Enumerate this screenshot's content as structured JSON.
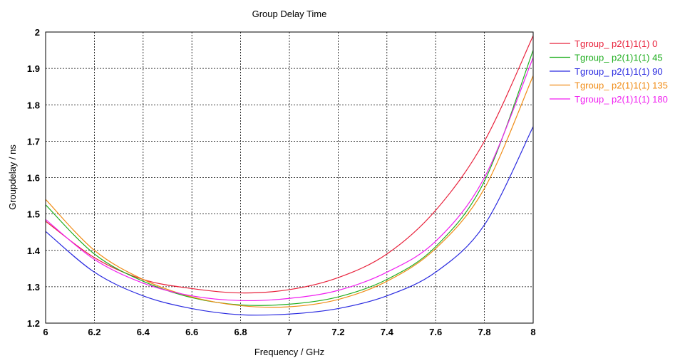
{
  "chart_data": {
    "type": "line",
    "title": "Group Delay Time",
    "xlabel": "Frequency / GHz",
    "ylabel": "Groupdelay / ns",
    "xlim": [
      6,
      8
    ],
    "ylim": [
      1.2,
      2
    ],
    "xticks": [
      "6",
      "6.2",
      "6.4",
      "6.6",
      "6.8",
      "7",
      "7.2",
      "7.4",
      "7.6",
      "7.8",
      "8"
    ],
    "yticks": [
      "1.2",
      "1.3",
      "1.4",
      "1.5",
      "1.6",
      "1.7",
      "1.8",
      "1.9",
      "2"
    ],
    "grid": true,
    "legend_position": "right",
    "x": [
      6.0,
      6.2,
      6.4,
      6.6,
      6.8,
      7.0,
      7.2,
      7.4,
      7.6,
      7.8,
      8.0
    ],
    "series": [
      {
        "name": "Tgroup_ p2(1)1(1) 0",
        "color": "#e8203a",
        "values": [
          1.48,
          1.38,
          1.32,
          1.295,
          1.283,
          1.292,
          1.325,
          1.39,
          1.51,
          1.7,
          1.99
        ]
      },
      {
        "name": "Tgroup_ p2(1)1(1) 45",
        "color": "#1fae1f",
        "values": [
          1.525,
          1.39,
          1.315,
          1.27,
          1.25,
          1.252,
          1.272,
          1.32,
          1.41,
          1.59,
          1.95
        ]
      },
      {
        "name": "Tgroup_ p2(1)1(1) 90",
        "color": "#2a2ae0",
        "values": [
          1.452,
          1.34,
          1.275,
          1.24,
          1.223,
          1.225,
          1.24,
          1.275,
          1.34,
          1.47,
          1.74
        ]
      },
      {
        "name": "Tgroup_ p2(1)1(1) 135",
        "color": "#f08b14",
        "values": [
          1.54,
          1.4,
          1.32,
          1.272,
          1.248,
          1.245,
          1.265,
          1.315,
          1.405,
          1.57,
          1.88
        ]
      },
      {
        "name": "Tgroup_ p2(1)1(1) 180",
        "color": "#f01ef0",
        "values": [
          1.485,
          1.375,
          1.31,
          1.275,
          1.262,
          1.268,
          1.29,
          1.34,
          1.425,
          1.6,
          1.93
        ]
      }
    ]
  }
}
